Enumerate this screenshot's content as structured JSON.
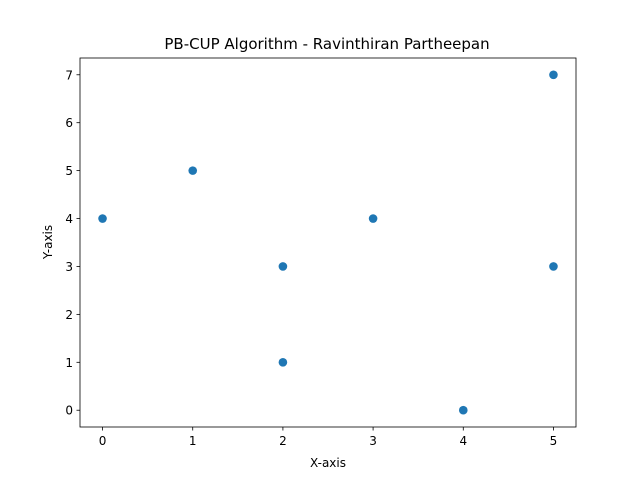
{
  "chart_data": {
    "type": "scatter",
    "title": "PB-CUP Algorithm - Ravinthiran Partheepan",
    "xlabel": "X-axis",
    "ylabel": "Y-axis",
    "xlim": [
      -0.25,
      5.25
    ],
    "ylim": [
      -0.35,
      7.35
    ],
    "xticks": [
      0,
      1,
      2,
      3,
      4,
      5
    ],
    "yticks": [
      0,
      1,
      2,
      3,
      4,
      5,
      6,
      7
    ],
    "grid": false,
    "marker_color": "#1f77b4",
    "points": [
      {
        "x": 0,
        "y": 4
      },
      {
        "x": 1,
        "y": 5
      },
      {
        "x": 2,
        "y": 3
      },
      {
        "x": 2,
        "y": 1
      },
      {
        "x": 3,
        "y": 4
      },
      {
        "x": 4,
        "y": 0
      },
      {
        "x": 5,
        "y": 7
      },
      {
        "x": 5,
        "y": 3
      }
    ]
  }
}
